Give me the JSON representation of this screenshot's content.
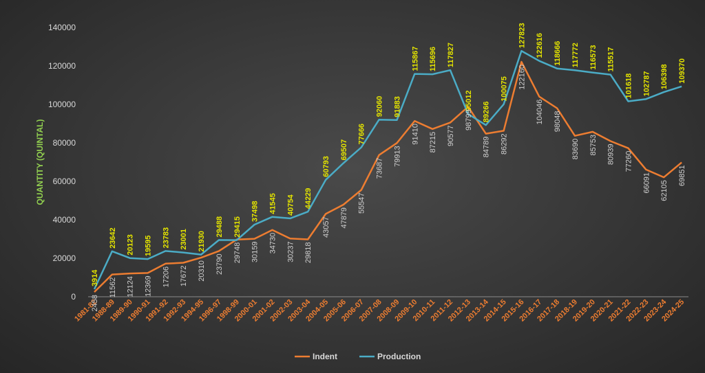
{
  "chart_data": {
    "type": "line",
    "title": "",
    "xlabel": "",
    "ylabel": "QUANTITY (QUINTAL)",
    "ylim": [
      0,
      140000
    ],
    "yticks": [
      0,
      20000,
      40000,
      60000,
      80000,
      100000,
      120000,
      140000
    ],
    "grid": false,
    "legend": "bottom-center",
    "categories": [
      "1981-82",
      "1988-89",
      "1989-90",
      "1990-91",
      "1991-92",
      "1992-93",
      "1994-95",
      "1996-97",
      "1998-99",
      "2000-01",
      "2001-02",
      "2002-03",
      "2003-04",
      "2004-05",
      "2005-06",
      "2006-07",
      "2007-08",
      "2008-09",
      "2009-10",
      "2010-11",
      "2011-12",
      "2012-13",
      "2013-14",
      "2014-15",
      "2015-16",
      "2016-17",
      "2017-18",
      "2018-19",
      "2019-20",
      "2020-21",
      "2021-22",
      "2022-23",
      "2023-24",
      "2024-25"
    ],
    "series": [
      {
        "name": "Indent",
        "color": "#ed7d31",
        "values": [
          2458,
          11562,
          12124,
          12369,
          17206,
          17672,
          20310,
          23790,
          29748,
          30159,
          34730,
          30237,
          29818,
          43057,
          47879,
          55547,
          73687,
          79913,
          91410,
          87215,
          90577,
          98799,
          84789,
          86292,
          122160,
          104046,
          98048,
          83690,
          85753,
          80939,
          77260,
          66091,
          62105,
          69851
        ]
      },
      {
        "name": "Production",
        "color": "#4bacc6",
        "values": [
          3914,
          23642,
          20123,
          19595,
          23783,
          23001,
          21930,
          29488,
          29415,
          37498,
          41545,
          40754,
          44229,
          60793,
          69507,
          77666,
          92060,
          91883,
          115867,
          115696,
          117827,
          95012,
          89266,
          100075,
          127823,
          122616,
          118666,
          117772,
          116573,
          115517,
          101618,
          102787,
          106398,
          109370
        ]
      }
    ]
  }
}
